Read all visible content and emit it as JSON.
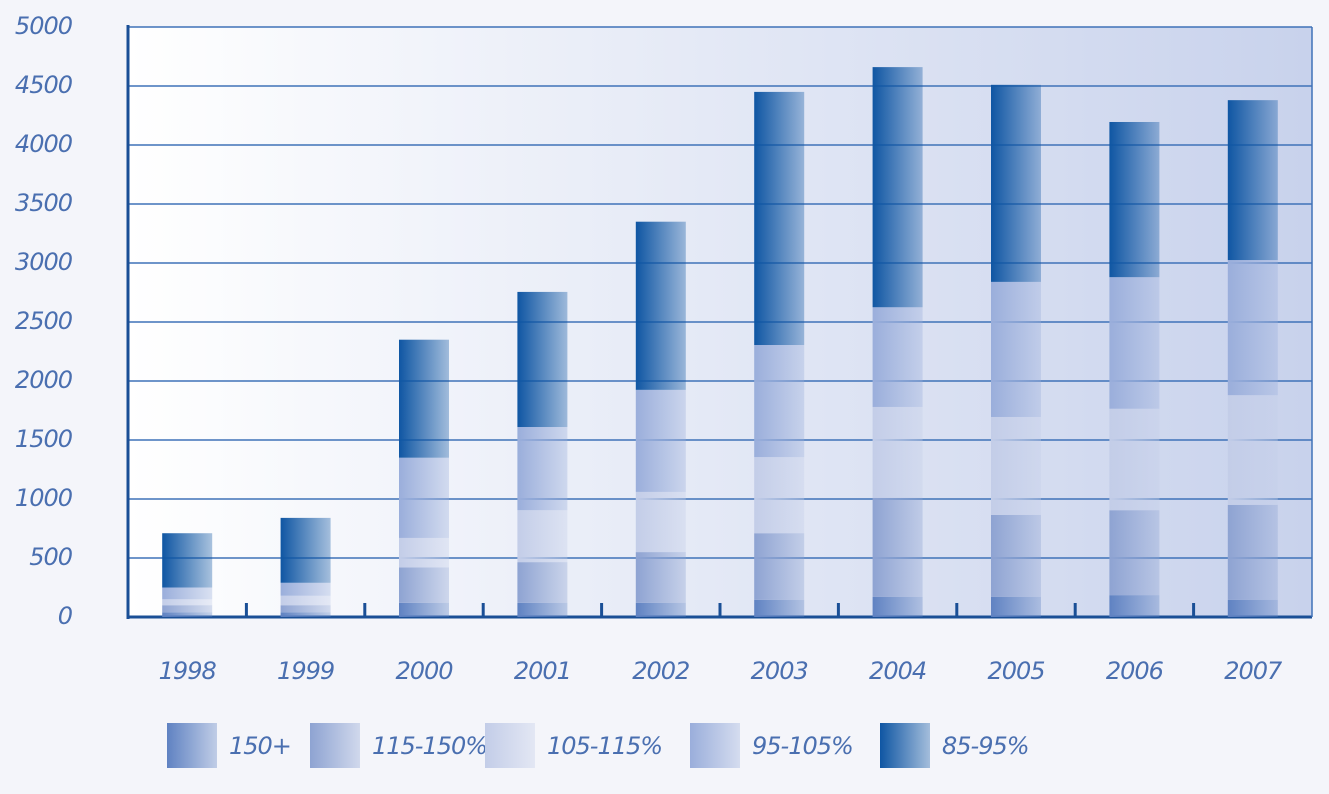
{
  "chart_data": {
    "type": "stacked-bar",
    "categories": [
      "1998",
      "1999",
      "2000",
      "2001",
      "2002",
      "2003",
      "2004",
      "2005",
      "2006",
      "2007"
    ],
    "series": [
      {
        "name": "150+",
        "color": "#5f82c2",
        "values": [
          40,
          40,
          120,
          120,
          120,
          145,
          170,
          170,
          185,
          145
        ]
      },
      {
        "name": "115-150%",
        "color": "#8ea3d2",
        "values": [
          60,
          60,
          300,
          345,
          430,
          565,
          840,
          695,
          720,
          805
        ]
      },
      {
        "name": "105-115%",
        "color": "#c3cde8",
        "values": [
          50,
          80,
          250,
          440,
          510,
          645,
          770,
          830,
          860,
          930
        ]
      },
      {
        "name": "95-105%",
        "color": "#9aaedb",
        "values": [
          100,
          110,
          680,
          705,
          865,
          950,
          845,
          1145,
          1115,
          1145
        ]
      },
      {
        "name": "85-95%",
        "color": "#0f56a3",
        "values": [
          460,
          550,
          1000,
          1145,
          1425,
          2145,
          2035,
          1670,
          1315,
          1355
        ]
      }
    ],
    "ylim": [
      0,
      5000
    ],
    "yticks": [
      0,
      500,
      1000,
      1500,
      2000,
      2500,
      3000,
      3500,
      4000,
      4500,
      5000
    ],
    "grid": true
  }
}
